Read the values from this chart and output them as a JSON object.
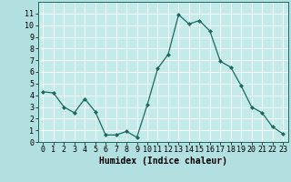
{
  "x": [
    0,
    1,
    2,
    3,
    4,
    5,
    6,
    7,
    8,
    9,
    10,
    11,
    12,
    13,
    14,
    15,
    16,
    17,
    18,
    19,
    20,
    21,
    22,
    23
  ],
  "y": [
    4.3,
    4.2,
    3.0,
    2.5,
    3.7,
    2.6,
    0.6,
    0.6,
    0.9,
    0.4,
    3.2,
    6.3,
    7.5,
    10.9,
    10.1,
    10.4,
    9.5,
    6.9,
    6.4,
    4.8,
    3.0,
    2.5,
    1.3,
    0.7
  ],
  "line_color": "#1a6b5e",
  "marker": "D",
  "marker_size": 2.0,
  "bg_color": "#b2dfdf",
  "grid_color": "#ffffff",
  "xlabel": "Humidex (Indice chaleur)",
  "xlim": [
    -0.5,
    23.5
  ],
  "ylim": [
    0,
    12
  ],
  "xticks": [
    0,
    1,
    2,
    3,
    4,
    5,
    6,
    7,
    8,
    9,
    10,
    11,
    12,
    13,
    14,
    15,
    16,
    17,
    18,
    19,
    20,
    21,
    22,
    23
  ],
  "yticks": [
    0,
    1,
    2,
    3,
    4,
    5,
    6,
    7,
    8,
    9,
    10,
    11
  ],
  "xlabel_fontsize": 7,
  "tick_fontsize": 6,
  "axes_bg_color": "#c5eaea"
}
